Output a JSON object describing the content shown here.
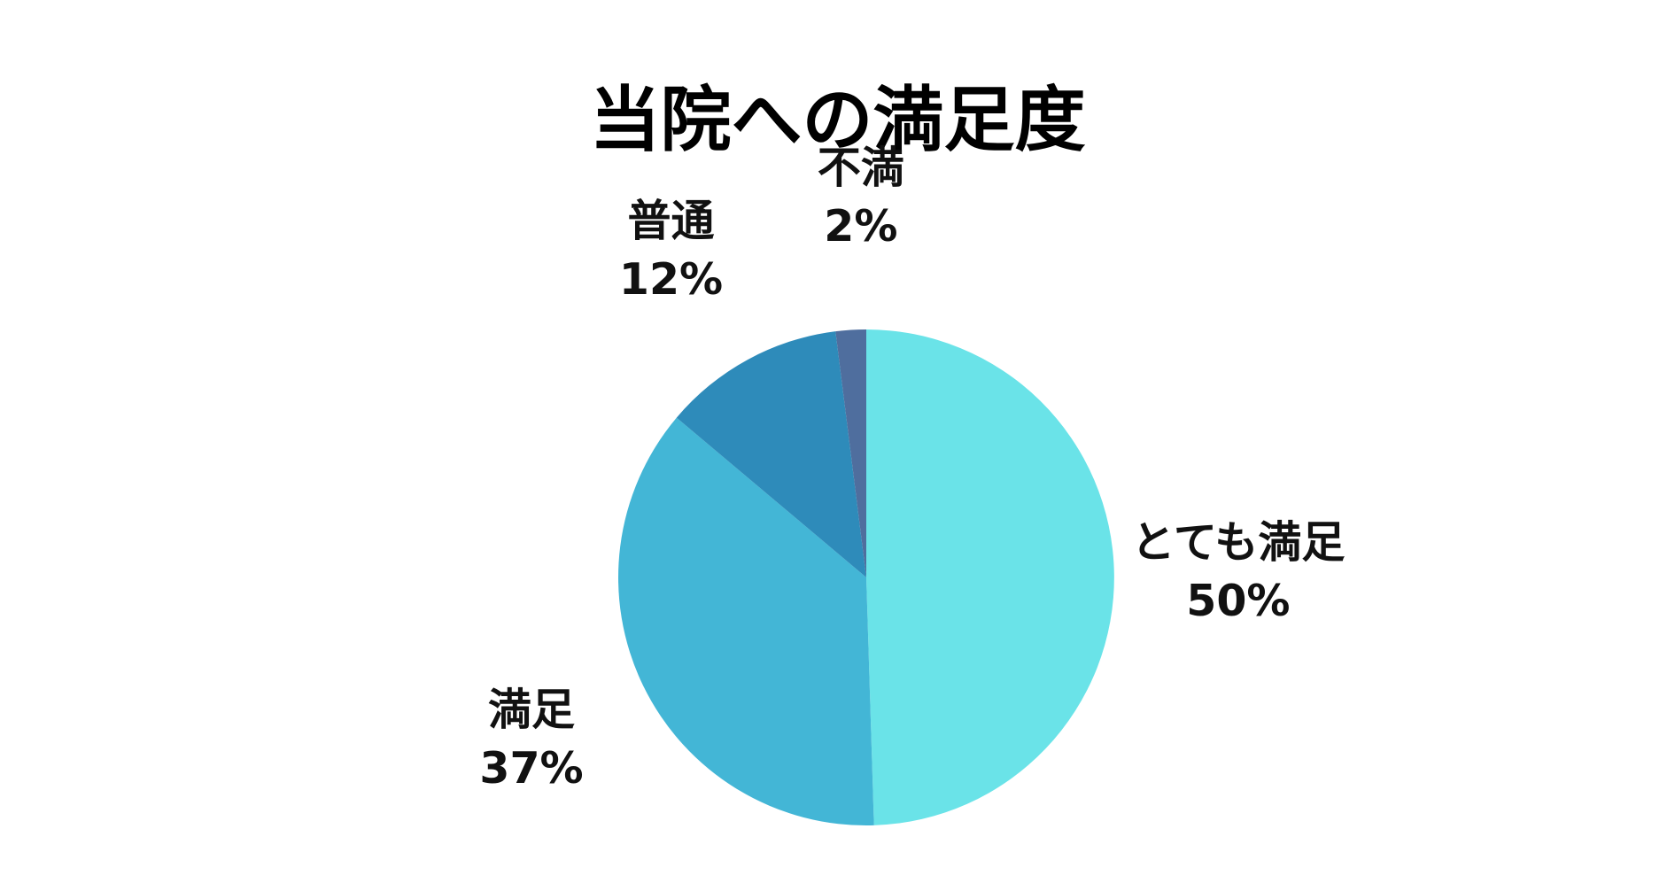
{
  "chart_data": {
    "type": "pie",
    "title": "当院への満足度",
    "slices": [
      {
        "label": "とても満足",
        "value": 50,
        "value_label": "50%",
        "color": "#6ae3e8"
      },
      {
        "label": "満足",
        "value": 37,
        "value_label": "37%",
        "color": "#43b6d6"
      },
      {
        "label": "普通",
        "value": 12,
        "value_label": "12%",
        "color": "#2e8bba"
      },
      {
        "label": "不満",
        "value": 2,
        "value_label": "2%",
        "color": "#4f6e9e"
      }
    ],
    "start": "12 o'clock",
    "direction": "clockwise",
    "legend": "none"
  }
}
